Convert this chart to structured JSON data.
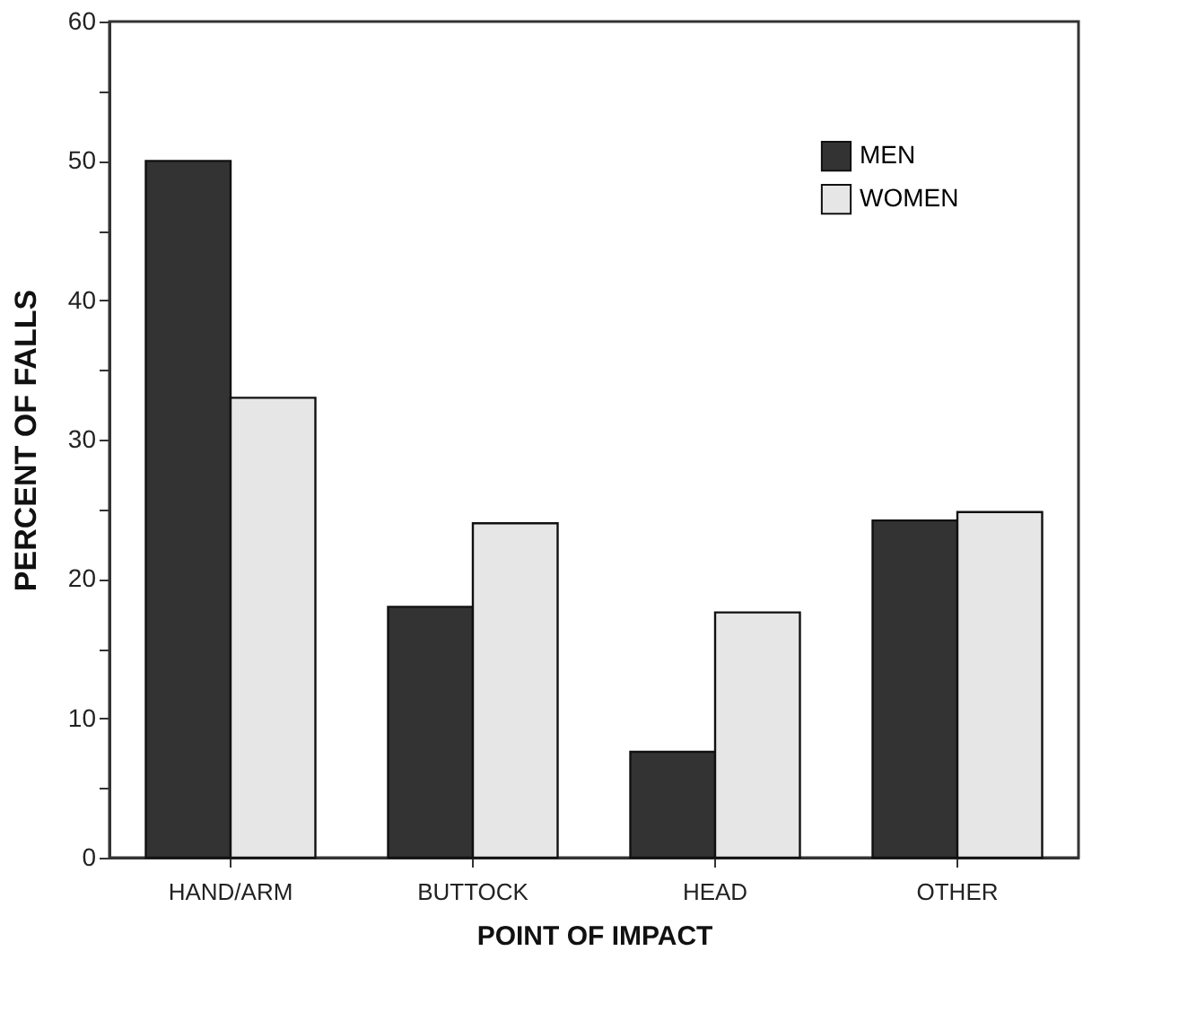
{
  "chart_data": {
    "type": "bar",
    "xlabel": "POINT OF IMPACT",
    "ylabel": "PERCENT OF FALLS",
    "categories": [
      "HAND/ARM",
      "BUTTOCK",
      "HEAD",
      "OTHER"
    ],
    "series": [
      {
        "name": "MEN",
        "color": "#333333",
        "values": [
          50,
          18,
          7.6,
          24.2
        ]
      },
      {
        "name": "WOMEN",
        "color": "#e6e6e6",
        "values": [
          33,
          24,
          17.6,
          24.8
        ]
      }
    ],
    "ylim": [
      0,
      60
    ],
    "yticks": [
      0,
      {
        "value": 5,
        "label": null
      },
      10,
      {
        "value": 15,
        "label": null
      },
      20,
      {
        "value": 25,
        "label": null
      },
      30,
      {
        "value": 35,
        "label": null
      },
      40,
      {
        "value": 45,
        "label": null
      },
      50,
      {
        "value": 55,
        "label": null
      },
      60
    ],
    "legend": "top right",
    "grid": false
  }
}
